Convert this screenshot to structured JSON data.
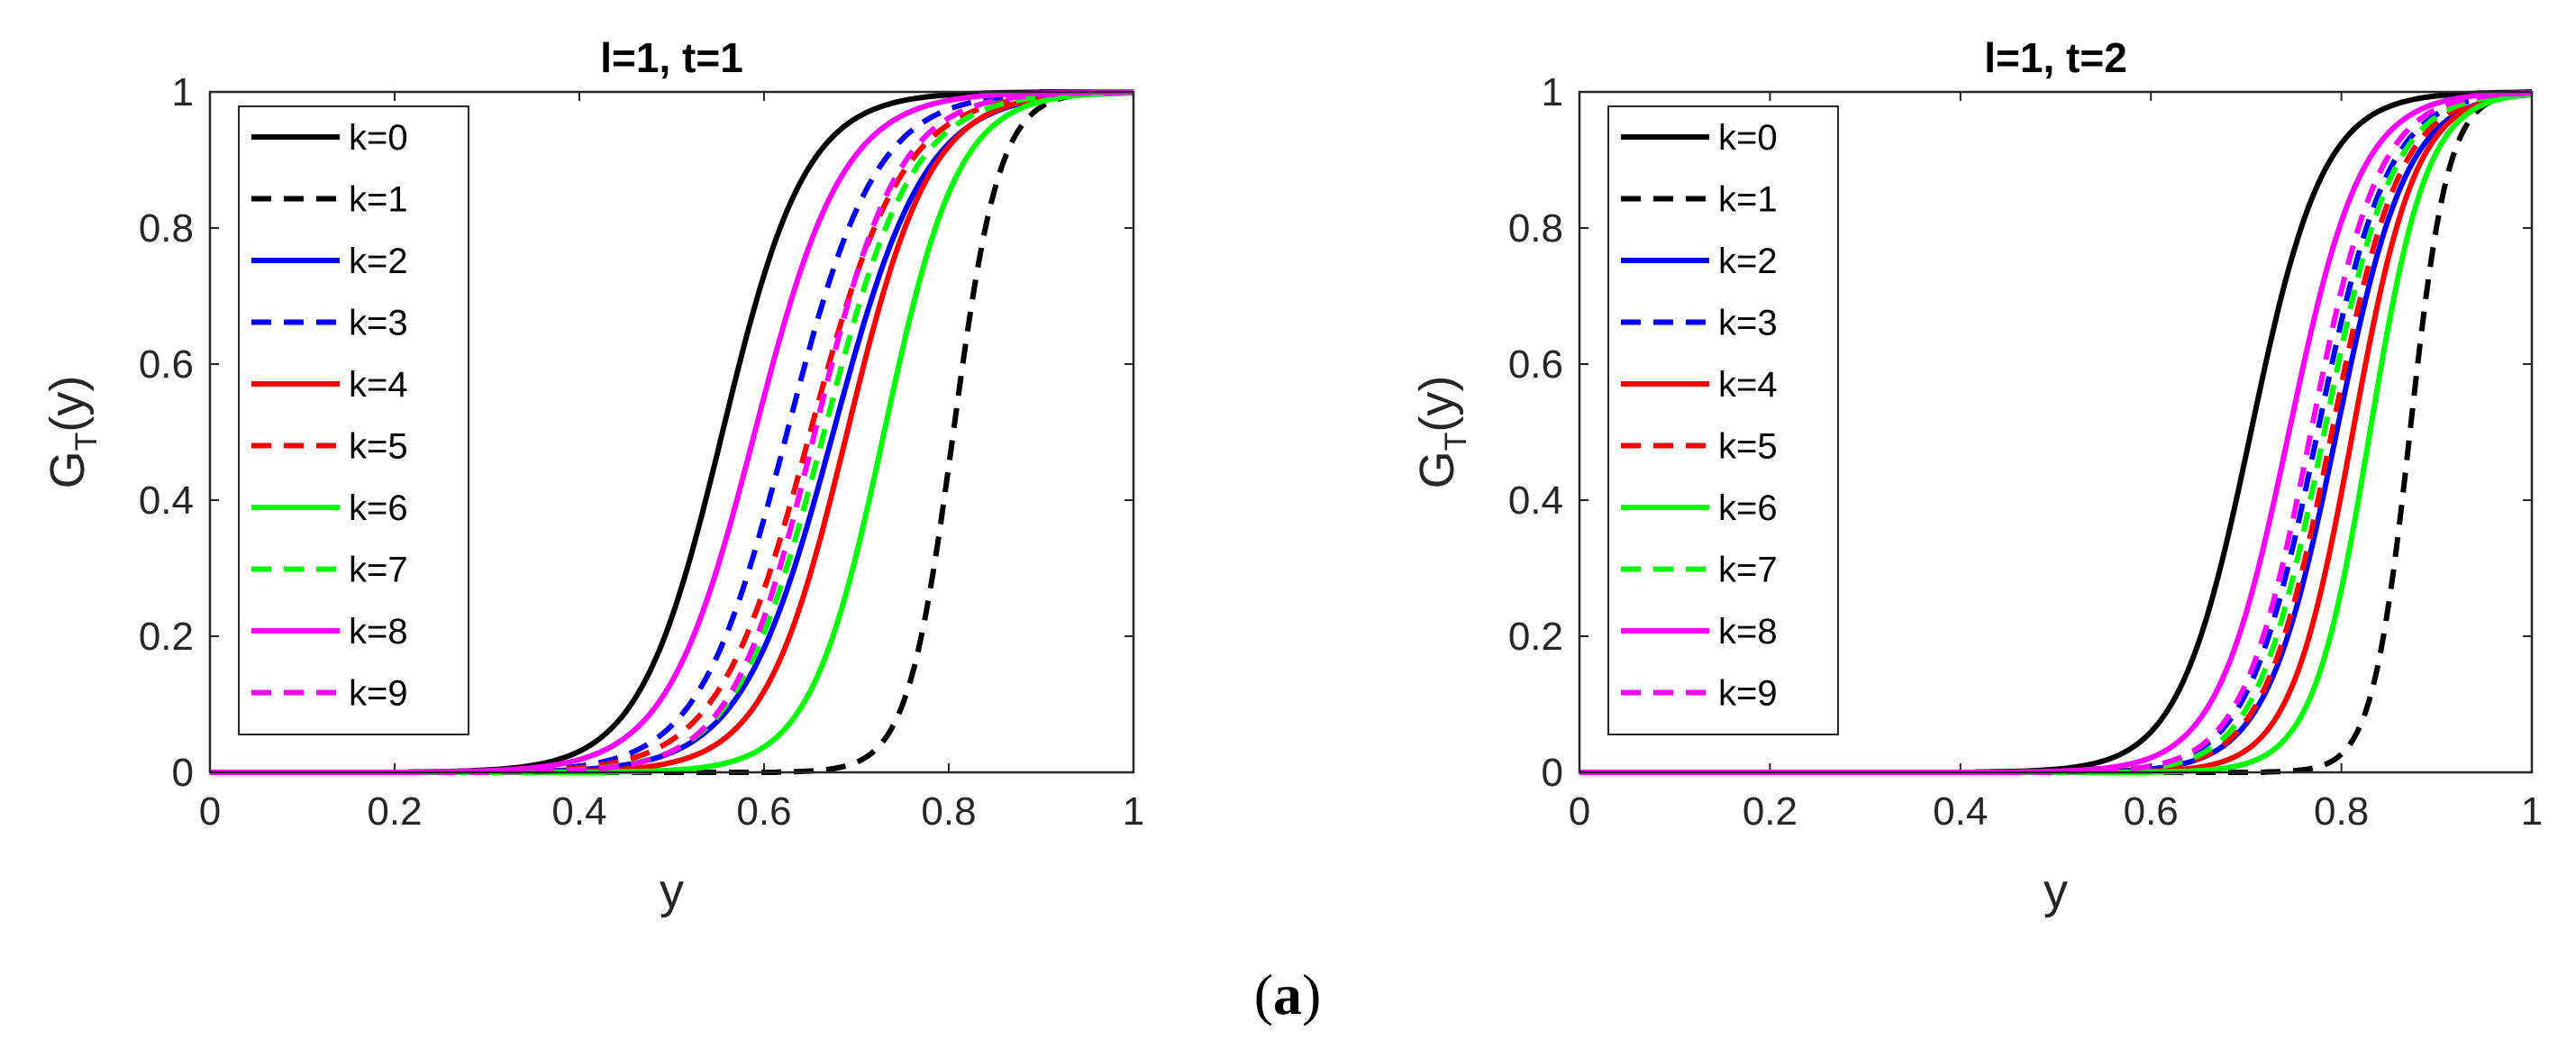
{
  "figure": {
    "caption_open": "(",
    "caption_letter": "a",
    "caption_close": ")"
  },
  "chart_data": [
    {
      "type": "line",
      "title": "l=1, t=1",
      "xlabel": "y",
      "ylabel_main": "G",
      "ylabel_sub": "T",
      "ylabel_tail": "(y)",
      "xlim": [
        0,
        1
      ],
      "ylim": [
        0,
        1
      ],
      "xticks": [
        "0",
        "0.2",
        "0.4",
        "0.6",
        "0.8",
        "1"
      ],
      "yticks": [
        "0",
        "0.2",
        "0.4",
        "0.6",
        "0.8",
        "1"
      ],
      "legend_position": "top-left",
      "note": "sigmoidal CDF curves; each series described by median y (G=0.5) and spread",
      "series": [
        {
          "name": "k=0",
          "color": "#000000",
          "dash": "solid",
          "median": 0.555,
          "spread": 0.045
        },
        {
          "name": "k=1",
          "color": "#000000",
          "dash": "dashed",
          "median": 0.805,
          "spread": 0.025
        },
        {
          "name": "k=2",
          "color": "#0000ff",
          "dash": "solid",
          "median": 0.675,
          "spread": 0.05
        },
        {
          "name": "k=3",
          "color": "#0000ff",
          "dash": "dashed",
          "median": 0.625,
          "spread": 0.048
        },
        {
          "name": "k=4",
          "color": "#ff0000",
          "dash": "solid",
          "median": 0.69,
          "spread": 0.045
        },
        {
          "name": "k=5",
          "color": "#ff0000",
          "dash": "dashed",
          "median": 0.65,
          "spread": 0.05
        },
        {
          "name": "k=6",
          "color": "#00ff00",
          "dash": "solid",
          "median": 0.73,
          "spread": 0.04
        },
        {
          "name": "k=7",
          "color": "#00ff00",
          "dash": "dashed",
          "median": 0.665,
          "spread": 0.048
        },
        {
          "name": "k=8",
          "color": "#ff00ff",
          "dash": "solid",
          "median": 0.59,
          "spread": 0.048
        },
        {
          "name": "k=9",
          "color": "#ff00ff",
          "dash": "dashed",
          "median": 0.655,
          "spread": 0.045
        }
      ]
    },
    {
      "type": "line",
      "title": "l=1, t=2",
      "xlabel": "y",
      "ylabel_main": "G",
      "ylabel_sub": "T",
      "ylabel_tail": "(y)",
      "xlim": [
        0,
        1
      ],
      "ylim": [
        0,
        1
      ],
      "xticks": [
        "0",
        "0.2",
        "0.4",
        "0.6",
        "0.8",
        "1"
      ],
      "yticks": [
        "0",
        "0.2",
        "0.4",
        "0.6",
        "0.8",
        "1"
      ],
      "legend_position": "top-left",
      "note": "sigmoidal CDF curves; each series described by median y (G=0.5) and spread",
      "series": [
        {
          "name": "k=0",
          "color": "#000000",
          "dash": "solid",
          "median": 0.705,
          "spread": 0.038
        },
        {
          "name": "k=1",
          "color": "#000000",
          "dash": "dashed",
          "median": 0.872,
          "spread": 0.02
        },
        {
          "name": "k=2",
          "color": "#0000ff",
          "dash": "solid",
          "median": 0.795,
          "spread": 0.037
        },
        {
          "name": "k=3",
          "color": "#0000ff",
          "dash": "dashed",
          "median": 0.775,
          "spread": 0.037
        },
        {
          "name": "k=4",
          "color": "#ff0000",
          "dash": "solid",
          "median": 0.812,
          "spread": 0.033
        },
        {
          "name": "k=5",
          "color": "#ff0000",
          "dash": "dashed",
          "median": 0.79,
          "spread": 0.036
        },
        {
          "name": "k=6",
          "color": "#00ff00",
          "dash": "solid",
          "median": 0.83,
          "spread": 0.03
        },
        {
          "name": "k=7",
          "color": "#00ff00",
          "dash": "dashed",
          "median": 0.782,
          "spread": 0.036
        },
        {
          "name": "k=8",
          "color": "#ff00ff",
          "dash": "solid",
          "median": 0.745,
          "spread": 0.038
        },
        {
          "name": "k=9",
          "color": "#ff00ff",
          "dash": "dashed",
          "median": 0.768,
          "spread": 0.036
        }
      ]
    }
  ]
}
